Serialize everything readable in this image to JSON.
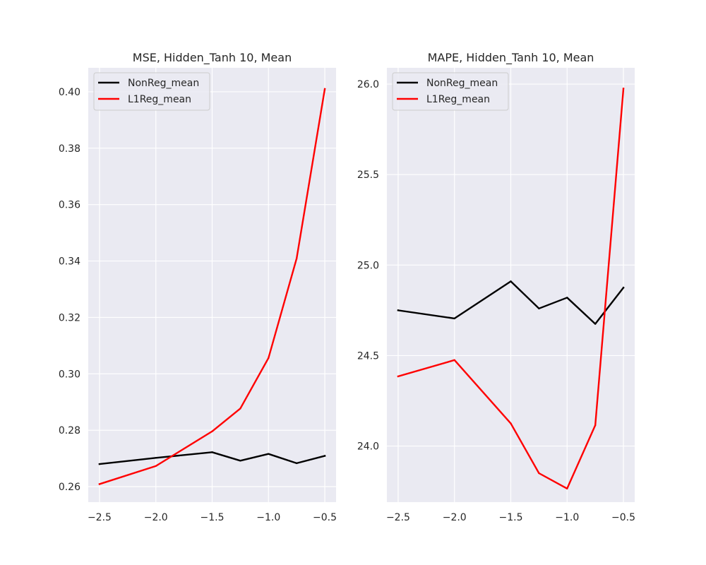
{
  "colors": {
    "figure_bg": "#ffffff",
    "axes_bg": "#eaeaf2",
    "grid": "#ffffff",
    "nonreg": "#000000",
    "l1reg": "#ff0000",
    "legend_bg": "#eaeaf2",
    "legend_border": "#cccccc"
  },
  "chart_data": [
    {
      "type": "line",
      "title": "MSE, Hidden_Tanh 10, Mean",
      "xlabel": "",
      "ylabel": "",
      "xlim": [
        -2.6,
        -0.4
      ],
      "ylim": [
        0.2545,
        0.4085
      ],
      "x_ticks": [
        -2.5,
        -2.0,
        -1.5,
        -1.0,
        -0.5
      ],
      "x_tick_labels": [
        "−2.5",
        "−2.0",
        "−1.5",
        "−1.0",
        "−0.5"
      ],
      "y_ticks": [
        0.26,
        0.28,
        0.3,
        0.32,
        0.34,
        0.36,
        0.38,
        0.4
      ],
      "y_tick_labels": [
        "0.26",
        "0.28",
        "0.30",
        "0.32",
        "0.34",
        "0.36",
        "0.38",
        "0.40"
      ],
      "legend_position": "upper-left",
      "x": [
        -2.5,
        -2.0,
        -1.5,
        -1.25,
        -1.0,
        -0.75,
        -0.5
      ],
      "series": [
        {
          "name": "NonReg_mean",
          "color_key": "nonreg",
          "values": [
            0.268,
            0.2702,
            0.2722,
            0.2692,
            0.2716,
            0.2683,
            0.2709
          ]
        },
        {
          "name": "L1Reg_mean",
          "color_key": "l1reg",
          "values": [
            0.2609,
            0.2673,
            0.2796,
            0.2877,
            0.3056,
            0.3409,
            0.401
          ]
        }
      ]
    },
    {
      "type": "line",
      "title": "MAPE, Hidden_Tanh 10, Mean",
      "xlabel": "",
      "ylabel": "",
      "xlim": [
        -2.6,
        -0.4
      ],
      "ylim": [
        23.69,
        26.09
      ],
      "x_ticks": [
        -2.5,
        -2.0,
        -1.5,
        -1.0,
        -0.5
      ],
      "x_tick_labels": [
        "−2.5",
        "−2.0",
        "−1.5",
        "−1.0",
        "−0.5"
      ],
      "y_ticks": [
        24.0,
        24.5,
        25.0,
        25.5,
        26.0
      ],
      "y_tick_labels": [
        "24.0",
        "24.5",
        "25.0",
        "25.5",
        "26.0"
      ],
      "legend_position": "upper-left",
      "x": [
        -2.5,
        -2.0,
        -1.5,
        -1.25,
        -1.0,
        -0.75,
        -0.5
      ],
      "series": [
        {
          "name": "NonReg_mean",
          "color_key": "nonreg",
          "values": [
            24.75,
            24.705,
            24.91,
            24.76,
            24.82,
            24.675,
            24.875
          ]
        },
        {
          "name": "L1Reg_mean",
          "color_key": "l1reg",
          "values": [
            24.385,
            24.475,
            24.125,
            23.85,
            23.765,
            24.115,
            25.975
          ]
        }
      ]
    }
  ]
}
